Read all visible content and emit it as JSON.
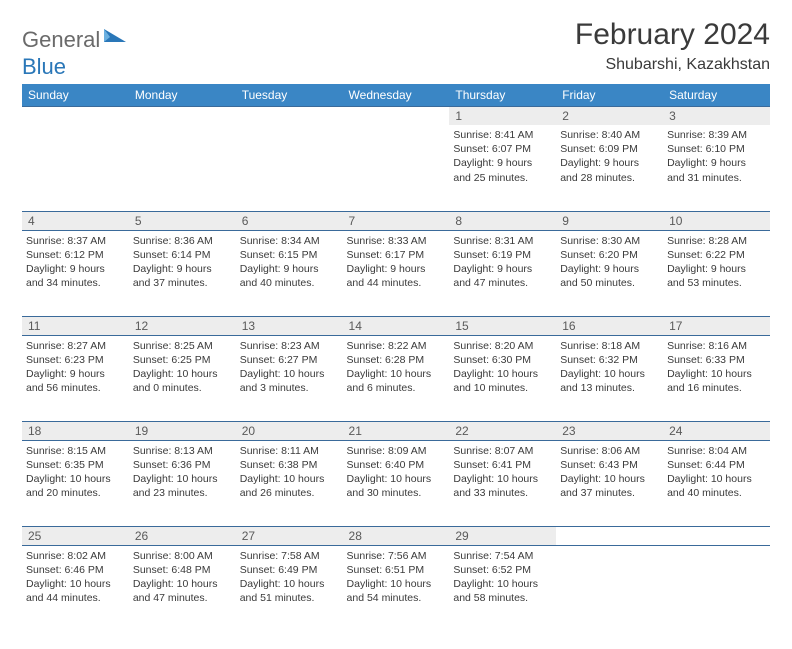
{
  "brand": {
    "part1": "General",
    "part2": "Blue",
    "mark_color": "#2a77b8"
  },
  "title": "February 2024",
  "location": "Shubarshi, Kazakhstan",
  "colors": {
    "header_bg": "#3a86c5",
    "header_text": "#ffffff",
    "daynum_bg": "#ededed",
    "daynum_text": "#5a5a5a",
    "rule": "#3a6a9a",
    "body_text": "#3a3a3a"
  },
  "day_headers": [
    "Sunday",
    "Monday",
    "Tuesday",
    "Wednesday",
    "Thursday",
    "Friday",
    "Saturday"
  ],
  "weeks": [
    [
      null,
      null,
      null,
      null,
      {
        "n": "1",
        "sr": "8:41 AM",
        "ss": "6:07 PM",
        "dl": "9 hours and 25 minutes."
      },
      {
        "n": "2",
        "sr": "8:40 AM",
        "ss": "6:09 PM",
        "dl": "9 hours and 28 minutes."
      },
      {
        "n": "3",
        "sr": "8:39 AM",
        "ss": "6:10 PM",
        "dl": "9 hours and 31 minutes."
      }
    ],
    [
      {
        "n": "4",
        "sr": "8:37 AM",
        "ss": "6:12 PM",
        "dl": "9 hours and 34 minutes."
      },
      {
        "n": "5",
        "sr": "8:36 AM",
        "ss": "6:14 PM",
        "dl": "9 hours and 37 minutes."
      },
      {
        "n": "6",
        "sr": "8:34 AM",
        "ss": "6:15 PM",
        "dl": "9 hours and 40 minutes."
      },
      {
        "n": "7",
        "sr": "8:33 AM",
        "ss": "6:17 PM",
        "dl": "9 hours and 44 minutes."
      },
      {
        "n": "8",
        "sr": "8:31 AM",
        "ss": "6:19 PM",
        "dl": "9 hours and 47 minutes."
      },
      {
        "n": "9",
        "sr": "8:30 AM",
        "ss": "6:20 PM",
        "dl": "9 hours and 50 minutes."
      },
      {
        "n": "10",
        "sr": "8:28 AM",
        "ss": "6:22 PM",
        "dl": "9 hours and 53 minutes."
      }
    ],
    [
      {
        "n": "11",
        "sr": "8:27 AM",
        "ss": "6:23 PM",
        "dl": "9 hours and 56 minutes."
      },
      {
        "n": "12",
        "sr": "8:25 AM",
        "ss": "6:25 PM",
        "dl": "10 hours and 0 minutes."
      },
      {
        "n": "13",
        "sr": "8:23 AM",
        "ss": "6:27 PM",
        "dl": "10 hours and 3 minutes."
      },
      {
        "n": "14",
        "sr": "8:22 AM",
        "ss": "6:28 PM",
        "dl": "10 hours and 6 minutes."
      },
      {
        "n": "15",
        "sr": "8:20 AM",
        "ss": "6:30 PM",
        "dl": "10 hours and 10 minutes."
      },
      {
        "n": "16",
        "sr": "8:18 AM",
        "ss": "6:32 PM",
        "dl": "10 hours and 13 minutes."
      },
      {
        "n": "17",
        "sr": "8:16 AM",
        "ss": "6:33 PM",
        "dl": "10 hours and 16 minutes."
      }
    ],
    [
      {
        "n": "18",
        "sr": "8:15 AM",
        "ss": "6:35 PM",
        "dl": "10 hours and 20 minutes."
      },
      {
        "n": "19",
        "sr": "8:13 AM",
        "ss": "6:36 PM",
        "dl": "10 hours and 23 minutes."
      },
      {
        "n": "20",
        "sr": "8:11 AM",
        "ss": "6:38 PM",
        "dl": "10 hours and 26 minutes."
      },
      {
        "n": "21",
        "sr": "8:09 AM",
        "ss": "6:40 PM",
        "dl": "10 hours and 30 minutes."
      },
      {
        "n": "22",
        "sr": "8:07 AM",
        "ss": "6:41 PM",
        "dl": "10 hours and 33 minutes."
      },
      {
        "n": "23",
        "sr": "8:06 AM",
        "ss": "6:43 PM",
        "dl": "10 hours and 37 minutes."
      },
      {
        "n": "24",
        "sr": "8:04 AM",
        "ss": "6:44 PM",
        "dl": "10 hours and 40 minutes."
      }
    ],
    [
      {
        "n": "25",
        "sr": "8:02 AM",
        "ss": "6:46 PM",
        "dl": "10 hours and 44 minutes."
      },
      {
        "n": "26",
        "sr": "8:00 AM",
        "ss": "6:48 PM",
        "dl": "10 hours and 47 minutes."
      },
      {
        "n": "27",
        "sr": "7:58 AM",
        "ss": "6:49 PM",
        "dl": "10 hours and 51 minutes."
      },
      {
        "n": "28",
        "sr": "7:56 AM",
        "ss": "6:51 PM",
        "dl": "10 hours and 54 minutes."
      },
      {
        "n": "29",
        "sr": "7:54 AM",
        "ss": "6:52 PM",
        "dl": "10 hours and 58 minutes."
      },
      null,
      null
    ]
  ],
  "labels": {
    "sunrise": "Sunrise:",
    "sunset": "Sunset:",
    "daylight": "Daylight:"
  }
}
